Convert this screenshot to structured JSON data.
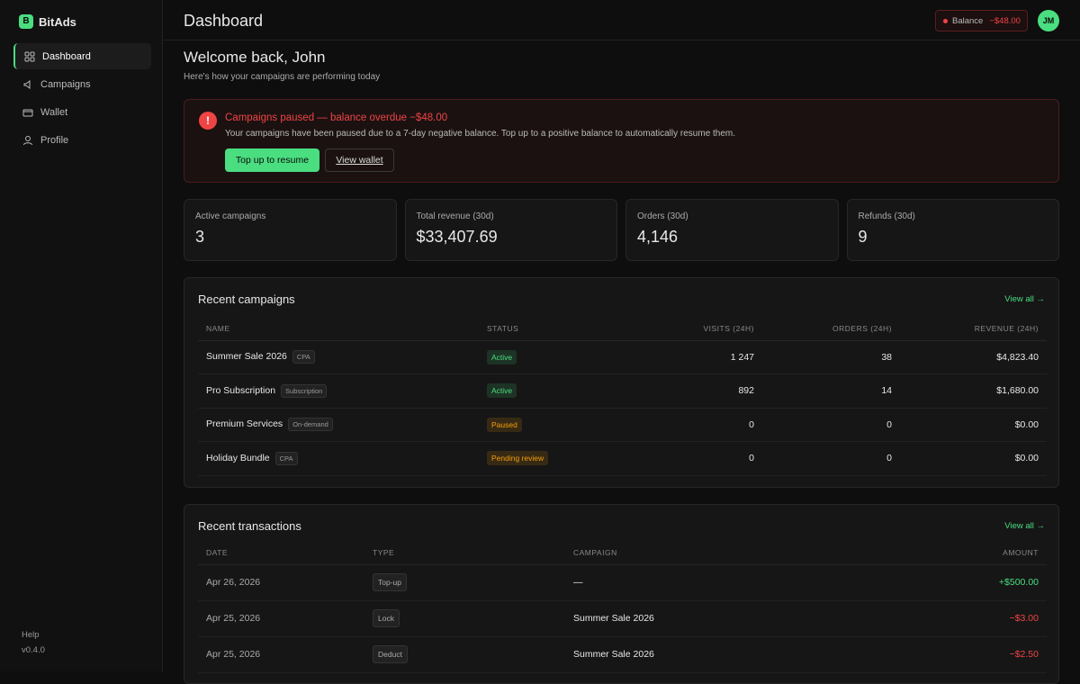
{
  "sidebar": {
    "logo": "B",
    "brand": "BitAds",
    "nav": [
      "Dashboard",
      "Campaigns",
      "Wallet",
      "Profile"
    ],
    "help": "Help",
    "version": "v0.4.0"
  },
  "header": {
    "title": "Dashboard",
    "balance_label": "Balance",
    "balance_value": "−$48.00",
    "avatar": "JM"
  },
  "welcome": {
    "title": "Welcome back, John",
    "subtitle": "Here's how your campaigns are performing today"
  },
  "alert": {
    "icon": "!",
    "title": "Campaigns paused — balance overdue −$48.00",
    "text": "Your campaigns have been paused due to a 7-day negative balance. Top up to a positive balance to automatically resume them.",
    "primary_button": "Top up to resume",
    "secondary_button": "View wallet"
  },
  "stats": [
    {
      "label": "Active campaigns",
      "value": "3"
    },
    {
      "label": "Total revenue (30d)",
      "value": "$33,407.69"
    },
    {
      "label": "Orders (30d)",
      "value": "4,146"
    },
    {
      "label": "Refunds (30d)",
      "value": "9"
    }
  ],
  "campaigns": {
    "title": "Recent campaigns",
    "link": "View all →",
    "columns": [
      "NAME",
      "STATUS",
      "VISITS (24H)",
      "ORDERS (24H)",
      "REVENUE (24H)"
    ],
    "rows": [
      {
        "name": "Summer Sale 2026",
        "tag": "CPA",
        "status": "Active",
        "status_color": "#4ade80",
        "visits": "1 247",
        "orders": "38",
        "revenue": "$4,823.40"
      },
      {
        "name": "Pro Subscription",
        "tag": "Subscription",
        "status": "Active",
        "status_color": "#4ade80",
        "visits": "892",
        "orders": "14",
        "revenue": "$1,680.00"
      },
      {
        "name": "Premium Services",
        "tag": "On-demand",
        "status": "Paused",
        "status_color": "#f59e0b",
        "visits": "0",
        "orders": "0",
        "revenue": "$0.00"
      },
      {
        "name": "Holiday Bundle",
        "tag": "CPA",
        "status": "Pending review",
        "status_color": "#f59e0b",
        "visits": "0",
        "orders": "0",
        "revenue": "$0.00"
      }
    ]
  },
  "transactions": {
    "title": "Recent transactions",
    "link": "View all →",
    "columns": [
      "DATE",
      "TYPE",
      "CAMPAIGN",
      "AMOUNT"
    ],
    "rows": [
      {
        "date": "Apr 26, 2026",
        "type": "Top-up",
        "campaign": "—",
        "amount": "+$500.00",
        "amount_color": "#4ade80"
      },
      {
        "date": "Apr 25, 2026",
        "type": "Lock",
        "campaign": "Summer Sale 2026",
        "amount": "−$3.00",
        "amount_color": "#ef4444"
      },
      {
        "date": "Apr 25, 2026",
        "type": "Deduct",
        "campaign": "Summer Sale 2026",
        "amount": "−$2.50",
        "amount_color": "#ef4444"
      }
    ]
  }
}
